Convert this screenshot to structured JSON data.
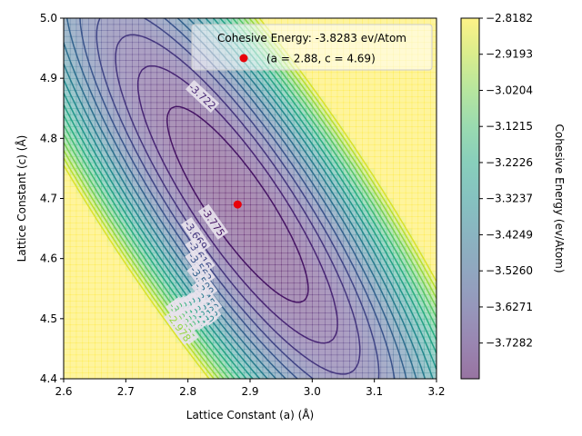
{
  "chart_data": {
    "type": "contour",
    "xlabel": "Lattice Constant (a) (Å)",
    "ylabel": "Lattice Constant (c) (Å)",
    "xlim": [
      2.6,
      3.2
    ],
    "ylim": [
      4.4,
      5.0
    ],
    "xticks": [
      "2.6",
      "2.7",
      "2.8",
      "2.9",
      "3.0",
      "3.1",
      "3.2"
    ],
    "yticks": [
      "4.4",
      "4.5",
      "4.6",
      "4.7",
      "4.8",
      "4.9",
      "5.0"
    ],
    "colormap": "viridis",
    "colorbar": {
      "label": "Cohesive Energy (ev/Atom)",
      "ticks": [
        "−2.8182",
        "−2.9193",
        "−3.0204",
        "−3.1215",
        "−3.2226",
        "−3.3237",
        "−3.4249",
        "−3.5260",
        "−3.6271",
        "−3.7282"
      ],
      "tick_values": [
        -2.8182,
        -2.9193,
        -3.0204,
        -3.1215,
        -3.2226,
        -3.3237,
        -3.4249,
        -3.526,
        -3.6271,
        -3.7282
      ],
      "min": -3.8283,
      "max": -2.8182
    },
    "minimum": {
      "a": 2.88,
      "c": 4.69,
      "energy": -3.8283,
      "color": "#e8000b"
    },
    "legend": {
      "title": "Cohesive Energy: -3.8283 ev/Atom",
      "entry": "(a = 2.88, c = 4.69)",
      "placement": "upper-right"
    },
    "contour_labels": [
      "-3.775",
      "-3.722",
      "-3.669",
      "-3.616",
      "-3.562",
      "-3.509",
      "-3.456",
      "-3.403",
      "-3.350",
      "-3.297",
      "-3.244",
      "-3.191",
      "-3.138",
      "-3.085",
      "-3.031",
      "-2.978"
    ],
    "contour_levels": [
      -3.7751,
      -3.7219,
      -3.6687,
      -3.6156,
      -3.5624,
      -3.5093,
      -3.4561,
      -3.4029,
      -3.3498,
      -3.2966,
      -3.2435,
      -3.1903,
      -3.1371,
      -3.084,
      -3.0308,
      -2.9777,
      -2.9245,
      -2.8714
    ]
  }
}
